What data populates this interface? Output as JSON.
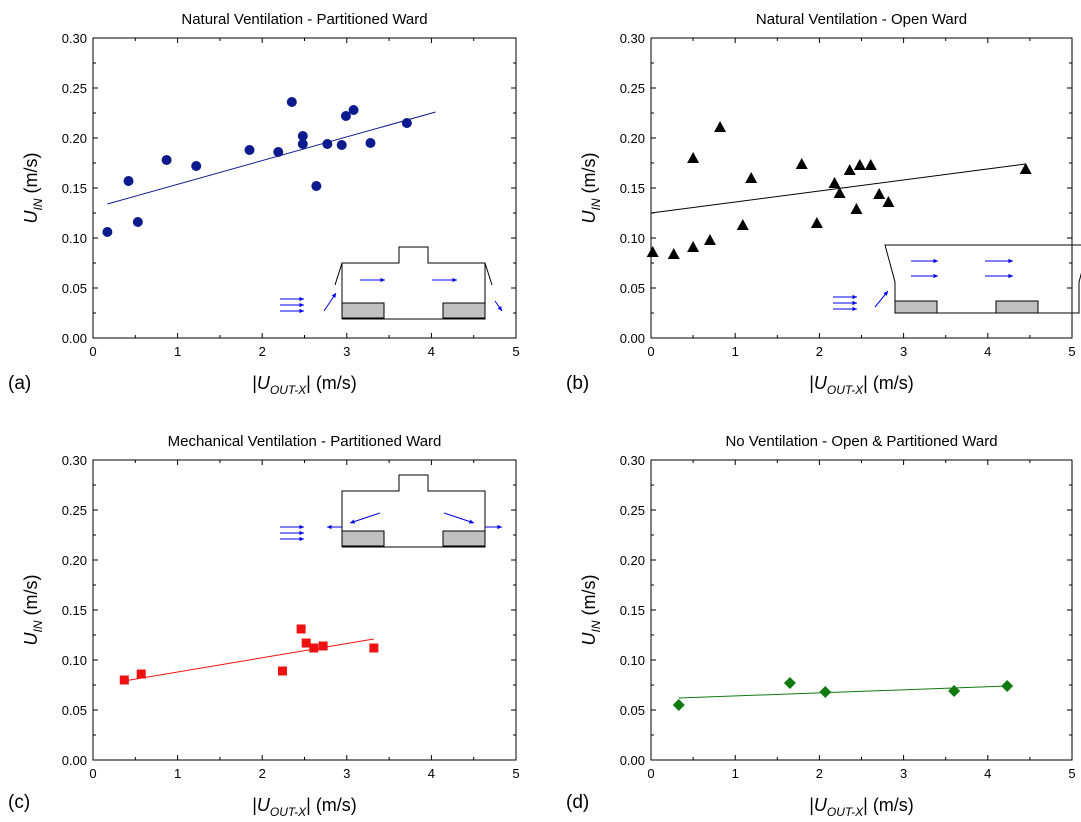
{
  "figure": {
    "panels": [
      {
        "letter": "(a)",
        "title": "Natural Ventilation - Partitioned Ward",
        "inset": "ward-inlet-top"
      },
      {
        "letter": "(b)",
        "title": "Natural Ventilation - Open Ward",
        "inset": "ward-open"
      },
      {
        "letter": "(c)",
        "title": "Mechanical Ventilation - Partitioned Ward",
        "inset": "ward-outlet-both"
      },
      {
        "letter": "(d)",
        "title": "No Ventilation - Open & Partitioned Ward",
        "inset": "none"
      }
    ],
    "ylabel": {
      "main": "U",
      "sub": "IN",
      "unit": " (m/s)"
    },
    "xlabel": {
      "bar1": "|",
      "main": "U",
      "sub": "OUT-X",
      "bar2": "|",
      "unit": " (m/s)"
    }
  },
  "chart_data": [
    {
      "type": "scatter",
      "title": "Natural Ventilation - Partitioned Ward",
      "xlabel": "|U_OUT-X| (m/s)",
      "ylabel": "U_IN (m/s)",
      "xlim": [
        0,
        5
      ],
      "ylim": [
        0,
        0.3
      ],
      "xticks": [
        "0",
        "1",
        "2",
        "3",
        "4",
        "5"
      ],
      "yticks": [
        "0.00",
        "0.05",
        "0.10",
        "0.15",
        "0.20",
        "0.25",
        "0.30"
      ],
      "marker": "circle",
      "color": "#0b1a8c",
      "points": [
        {
          "x": 0.17,
          "y": 0.106
        },
        {
          "x": 0.42,
          "y": 0.157
        },
        {
          "x": 0.53,
          "y": 0.116
        },
        {
          "x": 0.87,
          "y": 0.178
        },
        {
          "x": 1.22,
          "y": 0.172
        },
        {
          "x": 1.85,
          "y": 0.188
        },
        {
          "x": 2.19,
          "y": 0.186
        },
        {
          "x": 2.35,
          "y": 0.236
        },
        {
          "x": 2.48,
          "y": 0.202
        },
        {
          "x": 2.48,
          "y": 0.194
        },
        {
          "x": 2.64,
          "y": 0.152
        },
        {
          "x": 2.77,
          "y": 0.194
        },
        {
          "x": 2.94,
          "y": 0.193
        },
        {
          "x": 2.99,
          "y": 0.222
        },
        {
          "x": 3.08,
          "y": 0.228
        },
        {
          "x": 3.28,
          "y": 0.195
        },
        {
          "x": 3.71,
          "y": 0.215
        }
      ],
      "fit": {
        "x": [
          0.17,
          4.05
        ],
        "y": [
          0.134,
          0.226
        ]
      }
    },
    {
      "type": "scatter",
      "title": "Natural Ventilation - Open Ward",
      "xlabel": "|U_OUT-X| (m/s)",
      "ylabel": "U_IN (m/s)",
      "xlim": [
        0,
        5
      ],
      "ylim": [
        0,
        0.3
      ],
      "xticks": [
        "0",
        "1",
        "2",
        "3",
        "4",
        "5"
      ],
      "yticks": [
        "0.00",
        "0.05",
        "0.10",
        "0.15",
        "0.20",
        "0.25",
        "0.30"
      ],
      "marker": "triangle",
      "color": "#000000",
      "points": [
        {
          "x": 0.02,
          "y": 0.086
        },
        {
          "x": 0.27,
          "y": 0.084
        },
        {
          "x": 0.5,
          "y": 0.18
        },
        {
          "x": 0.5,
          "y": 0.091
        },
        {
          "x": 0.7,
          "y": 0.098
        },
        {
          "x": 0.82,
          "y": 0.211
        },
        {
          "x": 1.09,
          "y": 0.113
        },
        {
          "x": 1.19,
          "y": 0.16
        },
        {
          "x": 1.79,
          "y": 0.174
        },
        {
          "x": 1.97,
          "y": 0.115
        },
        {
          "x": 2.18,
          "y": 0.155
        },
        {
          "x": 2.24,
          "y": 0.145
        },
        {
          "x": 2.36,
          "y": 0.168
        },
        {
          "x": 2.44,
          "y": 0.129
        },
        {
          "x": 2.48,
          "y": 0.173
        },
        {
          "x": 2.61,
          "y": 0.173
        },
        {
          "x": 2.71,
          "y": 0.144
        },
        {
          "x": 2.82,
          "y": 0.136
        },
        {
          "x": 4.45,
          "y": 0.169
        }
      ],
      "fit": {
        "x": [
          0,
          4.45
        ],
        "y": [
          0.125,
          0.174
        ]
      }
    },
    {
      "type": "scatter",
      "title": "Mechanical Ventilation - Partitioned Ward",
      "xlabel": "|U_OUT-X| (m/s)",
      "ylabel": "U_IN (m/s)",
      "xlim": [
        0,
        5
      ],
      "ylim": [
        0,
        0.3
      ],
      "xticks": [
        "0",
        "1",
        "2",
        "3",
        "4",
        "5"
      ],
      "yticks": [
        "0.00",
        "0.05",
        "0.10",
        "0.15",
        "0.20",
        "0.25",
        "0.30"
      ],
      "marker": "square",
      "color": "#ee1111",
      "points": [
        {
          "x": 0.37,
          "y": 0.08
        },
        {
          "x": 0.57,
          "y": 0.086
        },
        {
          "x": 2.24,
          "y": 0.089
        },
        {
          "x": 2.46,
          "y": 0.131
        },
        {
          "x": 2.52,
          "y": 0.117
        },
        {
          "x": 2.61,
          "y": 0.112
        },
        {
          "x": 2.72,
          "y": 0.114
        },
        {
          "x": 3.32,
          "y": 0.112
        }
      ],
      "fit": {
        "x": [
          0.37,
          3.32
        ],
        "y": [
          0.079,
          0.121
        ]
      }
    },
    {
      "type": "scatter",
      "title": "No Ventilation - Open & Partitioned Ward",
      "xlabel": "|U_OUT-X| (m/s)",
      "ylabel": "U_IN (m/s)",
      "xlim": [
        0,
        5
      ],
      "ylim": [
        0,
        0.3
      ],
      "xticks": [
        "0",
        "1",
        "2",
        "3",
        "4",
        "5"
      ],
      "yticks": [
        "0.00",
        "0.05",
        "0.10",
        "0.15",
        "0.20",
        "0.25",
        "0.30"
      ],
      "marker": "diamond",
      "color": "#0f7a0f",
      "points": [
        {
          "x": 0.33,
          "y": 0.055
        },
        {
          "x": 1.65,
          "y": 0.077
        },
        {
          "x": 2.07,
          "y": 0.068
        },
        {
          "x": 3.6,
          "y": 0.069
        },
        {
          "x": 4.23,
          "y": 0.074
        }
      ],
      "fit": {
        "x": [
          0.33,
          4.23
        ],
        "y": [
          0.062,
          0.074
        ]
      }
    }
  ]
}
